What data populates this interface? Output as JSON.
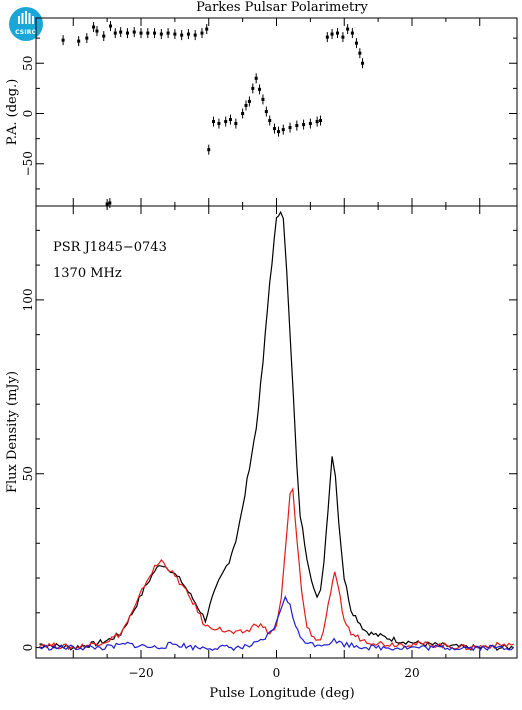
{
  "logo": {
    "text": "CSIRO",
    "color": "#1aa7d8"
  },
  "chart_data": [
    {
      "type": "scatter",
      "name": "position-angle",
      "ylabel": "P.A. (deg.)",
      "xlim": [
        -35.5,
        35.5
      ],
      "ylim": [
        -92,
        95
      ],
      "yticks": [
        -50,
        0,
        50
      ],
      "points": [
        [
          -31.5,
          73
        ],
        [
          -29.2,
          72
        ],
        [
          -28.0,
          75
        ],
        [
          -27.0,
          86
        ],
        [
          -26.5,
          82
        ],
        [
          -25.5,
          77
        ],
        [
          -24.5,
          87
        ],
        [
          -23.8,
          80
        ],
        [
          -23.0,
          81
        ],
        [
          -22.0,
          80
        ],
        [
          -21.0,
          81
        ],
        [
          -20.0,
          80
        ],
        [
          -19.0,
          80
        ],
        [
          -18.0,
          80
        ],
        [
          -17.0,
          79
        ],
        [
          -16.0,
          80
        ],
        [
          -15.0,
          79
        ],
        [
          -14.0,
          78
        ],
        [
          -13.0,
          79
        ],
        [
          -12.0,
          78
        ],
        [
          -11.0,
          80
        ],
        [
          -10.3,
          84
        ],
        [
          -25.0,
          -90
        ],
        [
          -24.6,
          -89
        ],
        [
          -10.0,
          -36
        ],
        [
          -9.3,
          -8
        ],
        [
          -8.5,
          -10
        ],
        [
          -7.5,
          -8
        ],
        [
          -6.8,
          -6
        ],
        [
          -6.0,
          -10
        ],
        [
          -5.0,
          0
        ],
        [
          -4.5,
          8
        ],
        [
          -4.0,
          12
        ],
        [
          -3.5,
          25
        ],
        [
          -3.0,
          35
        ],
        [
          -2.5,
          24
        ],
        [
          -2.0,
          14
        ],
        [
          -1.5,
          2
        ],
        [
          -1.0,
          -7
        ],
        [
          -0.3,
          -15
        ],
        [
          0.3,
          -18
        ],
        [
          1.0,
          -16
        ],
        [
          2.0,
          -14
        ],
        [
          3.0,
          -12
        ],
        [
          4.0,
          -11
        ],
        [
          5.0,
          -10
        ],
        [
          6.0,
          -8
        ],
        [
          6.5,
          -7
        ],
        [
          7.5,
          76
        ],
        [
          8.2,
          79
        ],
        [
          9.0,
          80
        ],
        [
          9.8,
          76
        ],
        [
          10.5,
          84
        ],
        [
          11.2,
          80
        ],
        [
          11.8,
          70
        ],
        [
          12.3,
          60
        ],
        [
          12.7,
          50
        ]
      ]
    },
    {
      "type": "line",
      "name": "flux",
      "title": "Parkes Pulsar Polarimetry",
      "xlabel": "Pulse Longitude (deg)",
      "ylabel": "Flux Density (mJy)",
      "xlim": [
        -35.5,
        35.5
      ],
      "ylim": [
        -3,
        127
      ],
      "xticks": [
        -20,
        0,
        20
      ],
      "yticks": [
        0,
        50,
        100
      ],
      "annotations": [
        "PSR J1845−0743",
        "1370 MHz"
      ],
      "series": [
        {
          "color": "#000000",
          "points": [
            [
              -35,
              1
            ],
            [
              -30,
              0
            ],
            [
              -27,
              1
            ],
            [
              -25,
              2
            ],
            [
              -23,
              4
            ],
            [
              -21,
              11
            ],
            [
              -19.5,
              17
            ],
            [
              -18,
              22
            ],
            [
              -17,
              24
            ],
            [
              -16,
              23
            ],
            [
              -14,
              19
            ],
            [
              -12,
              13
            ],
            [
              -10.5,
              8
            ],
            [
              -9.5,
              14
            ],
            [
              -8.5,
              19
            ],
            [
              -7,
              25
            ],
            [
              -6,
              31
            ],
            [
              -5,
              40
            ],
            [
              -4,
              52
            ],
            [
              -3,
              63
            ],
            [
              -2,
              82
            ],
            [
              -1,
              105
            ],
            [
              0,
              123
            ],
            [
              0.6,
              126
            ],
            [
              1,
              124
            ],
            [
              1.5,
              108
            ],
            [
              2,
              90
            ],
            [
              2.5,
              72
            ],
            [
              3,
              52
            ],
            [
              3.5,
              38
            ],
            [
              4.5,
              26
            ],
            [
              5.5,
              17
            ],
            [
              6,
              14
            ],
            [
              6.5,
              16
            ],
            [
              7,
              25
            ],
            [
              7.6,
              40
            ],
            [
              8.2,
              55
            ],
            [
              8.7,
              50
            ],
            [
              9.2,
              36
            ],
            [
              10,
              20
            ],
            [
              11,
              11
            ],
            [
              12,
              8
            ],
            [
              13,
              5
            ],
            [
              14,
              4
            ],
            [
              16,
              3
            ],
            [
              18,
              2
            ],
            [
              22,
              1
            ],
            [
              28,
              0
            ],
            [
              35,
              0
            ]
          ]
        },
        {
          "color": "#e31a1c",
          "points": [
            [
              -35,
              1
            ],
            [
              -30,
              0
            ],
            [
              -27,
              1
            ],
            [
              -25,
              2
            ],
            [
              -23,
              4
            ],
            [
              -21,
              11
            ],
            [
              -19.5,
              18
            ],
            [
              -18,
              23
            ],
            [
              -17,
              25
            ],
            [
              -16,
              23
            ],
            [
              -14,
              18
            ],
            [
              -12,
              12
            ],
            [
              -10.5,
              6
            ],
            [
              -9.5,
              6
            ],
            [
              -8,
              5
            ],
            [
              -6,
              4
            ],
            [
              -4,
              5
            ],
            [
              -3,
              7
            ],
            [
              -2,
              6
            ],
            [
              -1,
              4
            ],
            [
              0,
              6
            ],
            [
              0.7,
              14
            ],
            [
              1.4,
              30
            ],
            [
              2,
              44
            ],
            [
              2.4,
              45
            ],
            [
              3,
              32
            ],
            [
              3.7,
              16
            ],
            [
              4.5,
              6
            ],
            [
              5.5,
              3
            ],
            [
              6.5,
              2
            ],
            [
              7.3,
              8
            ],
            [
              8,
              16
            ],
            [
              8.6,
              21
            ],
            [
              9.1,
              17
            ],
            [
              10,
              8
            ],
            [
              11,
              4
            ],
            [
              13,
              2
            ],
            [
              16,
              1
            ],
            [
              22,
              1
            ],
            [
              28,
              0
            ],
            [
              35,
              1
            ]
          ]
        },
        {
          "color": "#1f1fd0",
          "points": [
            [
              -35,
              0
            ],
            [
              -30,
              0
            ],
            [
              -25,
              0
            ],
            [
              -22,
              1
            ],
            [
              -18,
              0
            ],
            [
              -15,
              1
            ],
            [
              -12,
              0
            ],
            [
              -8,
              0
            ],
            [
              -5,
              0
            ],
            [
              -3,
              1
            ],
            [
              -2,
              2
            ],
            [
              -1,
              4
            ],
            [
              0,
              7
            ],
            [
              0.8,
              12
            ],
            [
              1.3,
              15
            ],
            [
              2,
              12
            ],
            [
              2.8,
              6
            ],
            [
              3.5,
              3
            ],
            [
              5,
              1
            ],
            [
              7,
              1
            ],
            [
              8.5,
              2
            ],
            [
              10,
              1
            ],
            [
              14,
              0
            ],
            [
              20,
              0
            ],
            [
              28,
              0
            ],
            [
              35,
              0
            ]
          ]
        }
      ]
    }
  ]
}
